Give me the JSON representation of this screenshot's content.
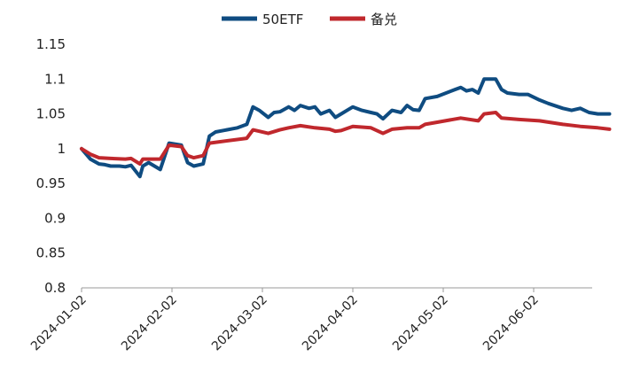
{
  "chart_data": {
    "type": "line",
    "title": "",
    "xlabel": "",
    "ylabel": "",
    "ylim": [
      0.8,
      1.15
    ],
    "yticks": [
      "0.8",
      "0.85",
      "0.9",
      "0.95",
      "1",
      "1.05",
      "1.1",
      "1.15"
    ],
    "xticks": [
      "2024-01-02",
      "2024-02-02",
      "2024-03-02",
      "2024-04-02",
      "2024-05-02",
      "2024-06-02"
    ],
    "grid": false,
    "legend": "top-center",
    "series": [
      {
        "name": "50ETF",
        "color": "#0f4c81",
        "points": [
          [
            "2024-01-02",
            1.0
          ],
          [
            "2024-01-03",
            0.995
          ],
          [
            "2024-01-05",
            0.985
          ],
          [
            "2024-01-08",
            0.978
          ],
          [
            "2024-01-10",
            0.977
          ],
          [
            "2024-01-12",
            0.975
          ],
          [
            "2024-01-15",
            0.975
          ],
          [
            "2024-01-17",
            0.974
          ],
          [
            "2024-01-19",
            0.976
          ],
          [
            "2024-01-22",
            0.96
          ],
          [
            "2024-01-23",
            0.975
          ],
          [
            "2024-01-25",
            0.98
          ],
          [
            "2024-01-29",
            0.97
          ],
          [
            "2024-02-01",
            1.008
          ],
          [
            "2024-02-05",
            1.005
          ],
          [
            "2024-02-07",
            0.98
          ],
          [
            "2024-02-09",
            0.975
          ],
          [
            "2024-02-12",
            0.978
          ],
          [
            "2024-02-14",
            1.018
          ],
          [
            "2024-02-16",
            1.024
          ],
          [
            "2024-02-23",
            1.03
          ],
          [
            "2024-02-26",
            1.035
          ],
          [
            "2024-02-28",
            1.06
          ],
          [
            "2024-03-01",
            1.055
          ],
          [
            "2024-03-04",
            1.045
          ],
          [
            "2024-03-06",
            1.052
          ],
          [
            "2024-03-08",
            1.053
          ],
          [
            "2024-03-11",
            1.06
          ],
          [
            "2024-03-13",
            1.055
          ],
          [
            "2024-03-15",
            1.062
          ],
          [
            "2024-03-18",
            1.058
          ],
          [
            "2024-03-20",
            1.06
          ],
          [
            "2024-03-22",
            1.05
          ],
          [
            "2024-03-25",
            1.055
          ],
          [
            "2024-03-27",
            1.045
          ],
          [
            "2024-03-29",
            1.05
          ],
          [
            "2024-04-02",
            1.06
          ],
          [
            "2024-04-05",
            1.055
          ],
          [
            "2024-04-08",
            1.052
          ],
          [
            "2024-04-10",
            1.05
          ],
          [
            "2024-04-12",
            1.043
          ],
          [
            "2024-04-15",
            1.055
          ],
          [
            "2024-04-18",
            1.052
          ],
          [
            "2024-04-20",
            1.062
          ],
          [
            "2024-04-22",
            1.056
          ],
          [
            "2024-04-24",
            1.055
          ],
          [
            "2024-04-26",
            1.072
          ],
          [
            "2024-04-30",
            1.075
          ],
          [
            "2024-05-06",
            1.085
          ],
          [
            "2024-05-08",
            1.088
          ],
          [
            "2024-05-10",
            1.083
          ],
          [
            "2024-05-12",
            1.085
          ],
          [
            "2024-05-14",
            1.08
          ],
          [
            "2024-05-16",
            1.1
          ],
          [
            "2024-05-20",
            1.1
          ],
          [
            "2024-05-22",
            1.085
          ],
          [
            "2024-05-24",
            1.08
          ],
          [
            "2024-05-28",
            1.078
          ],
          [
            "2024-05-31",
            1.078
          ],
          [
            "2024-06-04",
            1.07
          ],
          [
            "2024-06-07",
            1.065
          ],
          [
            "2024-06-12",
            1.058
          ],
          [
            "2024-06-15",
            1.055
          ],
          [
            "2024-06-18",
            1.058
          ],
          [
            "2024-06-21",
            1.052
          ],
          [
            "2024-06-24",
            1.05
          ],
          [
            "2024-06-28",
            1.05
          ]
        ]
      },
      {
        "name": "备兑",
        "color": "#c0282d",
        "points": [
          [
            "2024-01-02",
            1.0
          ],
          [
            "2024-01-05",
            0.992
          ],
          [
            "2024-01-08",
            0.987
          ],
          [
            "2024-01-12",
            0.986
          ],
          [
            "2024-01-17",
            0.985
          ],
          [
            "2024-01-19",
            0.986
          ],
          [
            "2024-01-22",
            0.978
          ],
          [
            "2024-01-23",
            0.985
          ],
          [
            "2024-01-29",
            0.985
          ],
          [
            "2024-02-01",
            1.005
          ],
          [
            "2024-02-05",
            1.003
          ],
          [
            "2024-02-07",
            0.99
          ],
          [
            "2024-02-09",
            0.987
          ],
          [
            "2024-02-12",
            0.99
          ],
          [
            "2024-02-14",
            1.008
          ],
          [
            "2024-02-26",
            1.015
          ],
          [
            "2024-02-28",
            1.027
          ],
          [
            "2024-03-01",
            1.025
          ],
          [
            "2024-03-04",
            1.022
          ],
          [
            "2024-03-08",
            1.027
          ],
          [
            "2024-03-11",
            1.03
          ],
          [
            "2024-03-15",
            1.033
          ],
          [
            "2024-03-20",
            1.03
          ],
          [
            "2024-03-25",
            1.028
          ],
          [
            "2024-03-27",
            1.025
          ],
          [
            "2024-03-29",
            1.026
          ],
          [
            "2024-04-02",
            1.032
          ],
          [
            "2024-04-08",
            1.03
          ],
          [
            "2024-04-12",
            1.022
          ],
          [
            "2024-04-15",
            1.028
          ],
          [
            "2024-04-20",
            1.03
          ],
          [
            "2024-04-24",
            1.03
          ],
          [
            "2024-04-26",
            1.035
          ],
          [
            "2024-04-30",
            1.038
          ],
          [
            "2024-05-08",
            1.044
          ],
          [
            "2024-05-14",
            1.04
          ],
          [
            "2024-05-16",
            1.05
          ],
          [
            "2024-05-20",
            1.052
          ],
          [
            "2024-05-22",
            1.044
          ],
          [
            "2024-05-28",
            1.042
          ],
          [
            "2024-06-04",
            1.04
          ],
          [
            "2024-06-12",
            1.035
          ],
          [
            "2024-06-18",
            1.032
          ],
          [
            "2024-06-24",
            1.03
          ],
          [
            "2024-06-28",
            1.028
          ]
        ]
      }
    ]
  }
}
